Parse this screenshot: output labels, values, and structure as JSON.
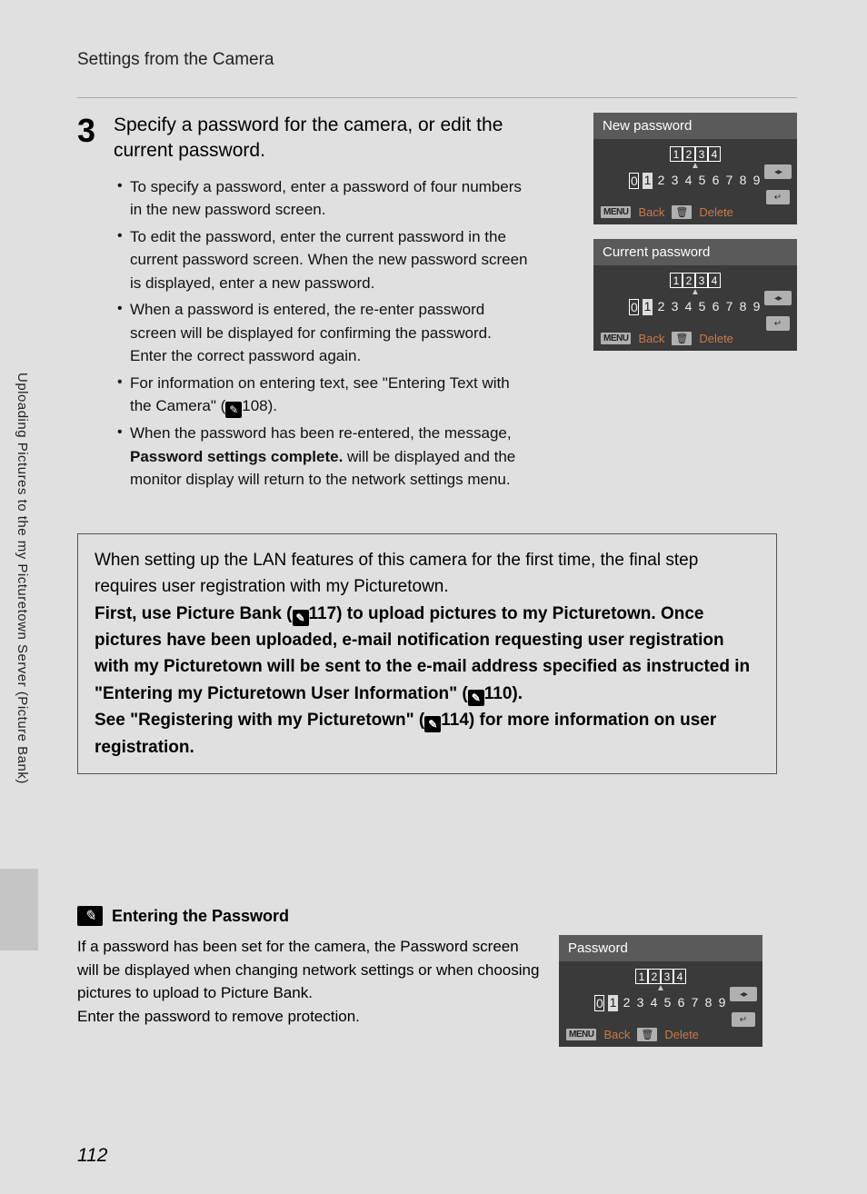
{
  "header": {
    "title": "Settings from the Camera"
  },
  "step": {
    "number": "3",
    "heading": "Specify a password for the camera, or edit the current password.",
    "bullets": [
      {
        "text": "To specify a password, enter a password of four numbers in the new password screen."
      },
      {
        "text": "To edit the password, enter the current password in the current password screen. When the new password screen is displayed, enter a new password."
      },
      {
        "text": "When a password is entered, the re-enter password screen will be displayed for confirming the password. Enter the correct password again."
      },
      {
        "pre": "For information on entering text, see \"Entering Text with the Camera\" (",
        "ref": "108",
        "post": ")."
      },
      {
        "pre": "When the password has been re-entered, the message, ",
        "bold": "Password settings complete.",
        "post": " will be displayed and the monitor display will return to the network settings menu."
      }
    ]
  },
  "screens": {
    "new_password": {
      "title": "New password",
      "digits": [
        "1",
        "2",
        "3",
        "4"
      ],
      "row": [
        "0",
        "1",
        "2",
        "3",
        "4",
        "5",
        "6",
        "7",
        "8",
        "9"
      ],
      "hl_index": 1,
      "menu_label": "MENU",
      "back_label": "Back",
      "delete_label": "Delete"
    },
    "current_password": {
      "title": "Current password",
      "digits": [
        "1",
        "2",
        "3",
        "4"
      ],
      "row": [
        "0",
        "1",
        "2",
        "3",
        "4",
        "5",
        "6",
        "7",
        "8",
        "9"
      ],
      "hl_index": 1,
      "menu_label": "MENU",
      "back_label": "Back",
      "delete_label": "Delete"
    },
    "password": {
      "title": "Password",
      "digits": [
        "1",
        "2",
        "3",
        "4"
      ],
      "row": [
        "0",
        "1",
        "2",
        "3",
        "4",
        "5",
        "6",
        "7",
        "8",
        "9"
      ],
      "hl_index": 1,
      "menu_label": "MENU",
      "back_label": "Back",
      "delete_label": "Delete"
    }
  },
  "info_box": {
    "intro": "When setting up the LAN features of this camera for the first time, the final step requires user registration with my Picturetown.",
    "line1_pre": "First, use Picture Bank (",
    "line1_ref": "117",
    "line1_post": ") to upload pictures to my Picturetown. Once pictures have been uploaded, e-mail notification requesting user registration with my Picturetown will be sent to the e-mail address specified as instructed in \"Entering my Picturetown User Information\" (",
    "line1_ref2": "110",
    "line1_end": ").",
    "line2_pre": "See \"Registering with my Picturetown\" (",
    "line2_ref": "114",
    "line2_post": ") for more information on user registration."
  },
  "note": {
    "title": "Entering the Password",
    "para1": "If a password has been set for the camera, the Password screen will be displayed when changing network settings or when choosing pictures to upload to Picture Bank.",
    "para2": "Enter the password to remove protection."
  },
  "sidebar": {
    "text": "Uploading Pictures to the my Picturetown Server (Picture Bank)"
  },
  "page_number": "112"
}
